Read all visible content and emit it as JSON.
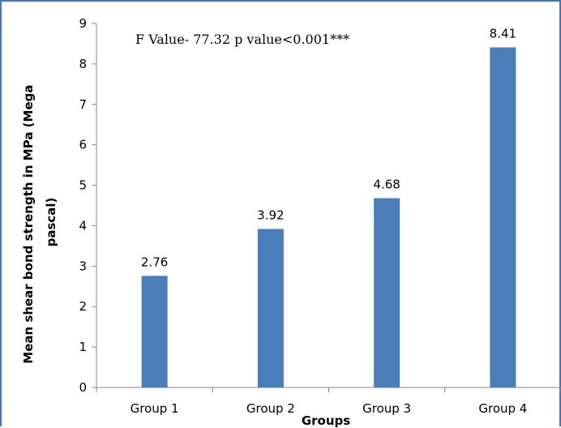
{
  "chart_data": {
    "type": "bar",
    "categories": [
      "Group 1",
      "Group 2",
      "Group 3",
      "Group 4"
    ],
    "values": [
      2.76,
      3.92,
      4.68,
      8.41
    ],
    "data_labels": [
      "2.76",
      "3.92",
      "4.68",
      "8.41"
    ],
    "xlabel": "Groups",
    "ylabel_lines": [
      "Mean shear bond strength in MPa (Mega",
      "pascal)"
    ],
    "ylim": [
      0,
      9
    ],
    "yticks": [
      0,
      1,
      2,
      3,
      4,
      5,
      6,
      7,
      8,
      9
    ],
    "annotation": "F Value- 77.32 p value<0.001***",
    "bar_color": "#4a7ebb",
    "grid": false,
    "legend": "none"
  }
}
